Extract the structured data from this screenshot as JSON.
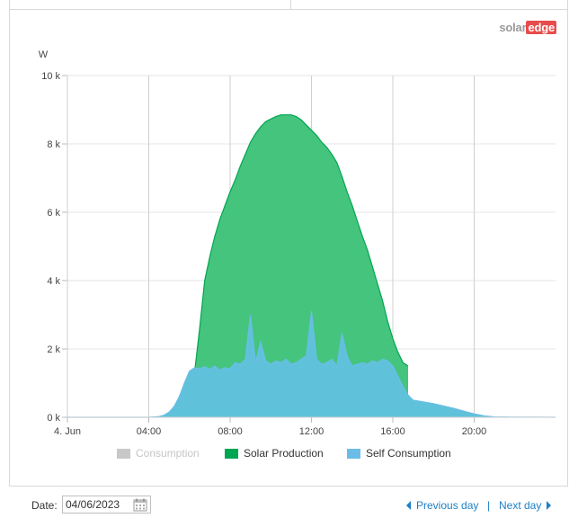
{
  "logo": {
    "part1": "solar",
    "part2": "edge"
  },
  "chart_data": {
    "type": "area",
    "ylabel": "W",
    "ylim": [
      0,
      10000
    ],
    "yticks": [
      {
        "value": 0,
        "label": "0 k"
      },
      {
        "value": 2000,
        "label": "2 k"
      },
      {
        "value": 4000,
        "label": "4 k"
      },
      {
        "value": 6000,
        "label": "6 k"
      },
      {
        "value": 8000,
        "label": "8 k"
      },
      {
        "value": 10000,
        "label": "10 k"
      }
    ],
    "xlim_hours": [
      0,
      24
    ],
    "xticks": [
      {
        "hour": 0,
        "label": "4. Jun"
      },
      {
        "hour": 4,
        "label": "04:00"
      },
      {
        "hour": 8,
        "label": "08:00"
      },
      {
        "hour": 12,
        "label": "12:00"
      },
      {
        "hour": 16,
        "label": "16:00"
      },
      {
        "hour": 20,
        "label": "20:00"
      }
    ],
    "grid": true,
    "legend_position": "bottom",
    "series": [
      {
        "name": "Consumption",
        "color": "#c8c8c8",
        "visible": false,
        "points": []
      },
      {
        "name": "Solar Production",
        "color": "#00a651",
        "fill": "#45c47d",
        "visible": true,
        "points": [
          [
            5.75,
            0
          ],
          [
            6.25,
            1300
          ],
          [
            6.5,
            2600
          ],
          [
            6.75,
            4000
          ],
          [
            7.0,
            4700
          ],
          [
            7.25,
            5300
          ],
          [
            7.5,
            5800
          ],
          [
            7.75,
            6200
          ],
          [
            8.0,
            6600
          ],
          [
            8.25,
            6950
          ],
          [
            8.5,
            7350
          ],
          [
            8.75,
            7700
          ],
          [
            9.0,
            8050
          ],
          [
            9.25,
            8300
          ],
          [
            9.5,
            8500
          ],
          [
            9.75,
            8650
          ],
          [
            10.0,
            8730
          ],
          [
            10.25,
            8800
          ],
          [
            10.5,
            8850
          ],
          [
            11.0,
            8850
          ],
          [
            11.25,
            8800
          ],
          [
            11.5,
            8700
          ],
          [
            11.75,
            8550
          ],
          [
            12.0,
            8400
          ],
          [
            12.25,
            8250
          ],
          [
            12.5,
            8050
          ],
          [
            12.75,
            7900
          ],
          [
            13.0,
            7700
          ],
          [
            13.25,
            7450
          ],
          [
            13.5,
            7050
          ],
          [
            13.75,
            6600
          ],
          [
            14.0,
            6200
          ],
          [
            14.25,
            5750
          ],
          [
            14.5,
            5300
          ],
          [
            14.75,
            4900
          ],
          [
            15.0,
            4400
          ],
          [
            15.25,
            3900
          ],
          [
            15.5,
            3400
          ],
          [
            15.75,
            2800
          ],
          [
            16.0,
            2300
          ],
          [
            16.25,
            1900
          ],
          [
            16.5,
            1600
          ],
          [
            16.75,
            1500
          ]
        ]
      },
      {
        "name": "Self Consumption",
        "color": "#6bbde8",
        "fill": "#5fc2da",
        "visible": true,
        "points": [
          [
            0,
            0
          ],
          [
            4.0,
            0
          ],
          [
            4.5,
            20
          ],
          [
            4.75,
            60
          ],
          [
            5.0,
            150
          ],
          [
            5.25,
            320
          ],
          [
            5.5,
            600
          ],
          [
            5.75,
            1000
          ],
          [
            6.0,
            1350
          ],
          [
            6.25,
            1450
          ],
          [
            6.5,
            1420
          ],
          [
            6.75,
            1480
          ],
          [
            7.0,
            1400
          ],
          [
            7.25,
            1500
          ],
          [
            7.5,
            1380
          ],
          [
            7.75,
            1450
          ],
          [
            8.0,
            1420
          ],
          [
            8.25,
            1600
          ],
          [
            8.5,
            1550
          ],
          [
            8.75,
            1700
          ],
          [
            9.0,
            3000
          ],
          [
            9.25,
            1600
          ],
          [
            9.5,
            2200
          ],
          [
            9.75,
            1650
          ],
          [
            10.0,
            1550
          ],
          [
            10.25,
            1650
          ],
          [
            10.5,
            1600
          ],
          [
            10.75,
            1700
          ],
          [
            11.0,
            1550
          ],
          [
            11.25,
            1600
          ],
          [
            11.5,
            1700
          ],
          [
            11.75,
            1800
          ],
          [
            12.0,
            3100
          ],
          [
            12.25,
            1700
          ],
          [
            12.5,
            1550
          ],
          [
            12.75,
            1600
          ],
          [
            13.0,
            1700
          ],
          [
            13.25,
            1500
          ],
          [
            13.5,
            2450
          ],
          [
            13.75,
            1800
          ],
          [
            14.0,
            1500
          ],
          [
            14.25,
            1550
          ],
          [
            14.5,
            1600
          ],
          [
            14.75,
            1550
          ],
          [
            15.0,
            1650
          ],
          [
            15.25,
            1600
          ],
          [
            15.5,
            1700
          ],
          [
            15.75,
            1650
          ],
          [
            16.0,
            1500
          ],
          [
            16.25,
            1200
          ],
          [
            16.5,
            900
          ],
          [
            16.75,
            650
          ],
          [
            17.0,
            500
          ],
          [
            17.5,
            450
          ],
          [
            18.0,
            400
          ],
          [
            18.5,
            330
          ],
          [
            19.0,
            260
          ],
          [
            19.5,
            180
          ],
          [
            20.0,
            100
          ],
          [
            20.5,
            40
          ],
          [
            21.0,
            10
          ],
          [
            22.0,
            5
          ],
          [
            23.0,
            5
          ],
          [
            24.0,
            0
          ]
        ]
      }
    ]
  },
  "legend": [
    {
      "label": "Consumption",
      "color": "#c8c8c8",
      "muted": true
    },
    {
      "label": "Solar Production",
      "color": "#00a651",
      "muted": false
    },
    {
      "label": "Self Consumption",
      "color": "#6bbde8",
      "muted": false
    }
  ],
  "footer": {
    "date_label": "Date:",
    "date_value": "04/06/2023",
    "prev_label": "Previous day",
    "separator": "|",
    "next_label": "Next day"
  }
}
